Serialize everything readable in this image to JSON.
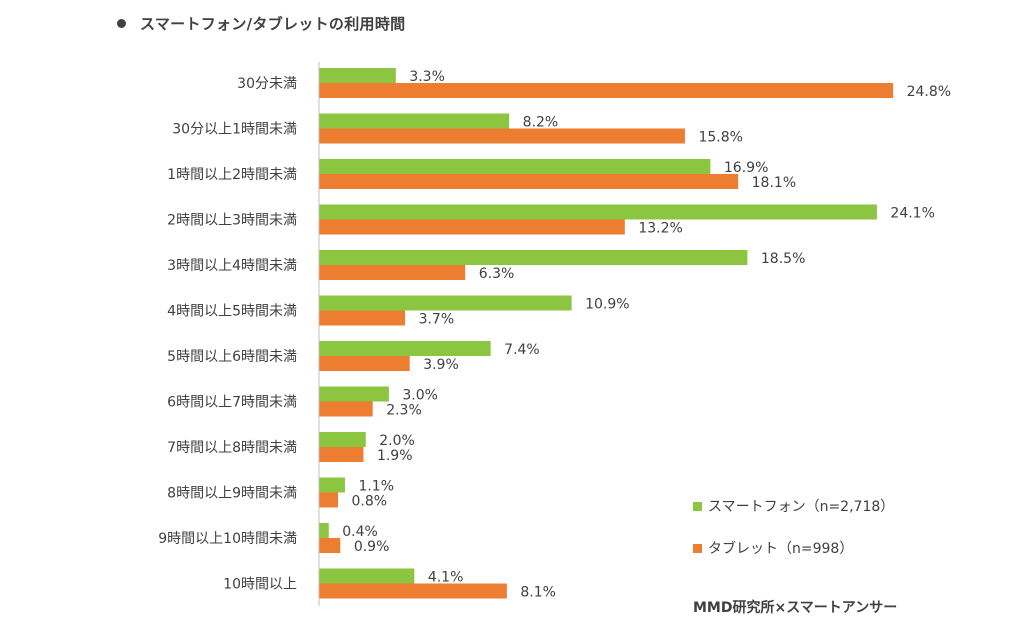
{
  "header": {
    "title": "スマートフォン/タブレットの利用時間"
  },
  "chart_data": {
    "type": "bar",
    "orientation": "horizontal",
    "title": "スマートフォン/タブレットの利用時間",
    "categories": [
      "30分未満",
      "30分以上1時間未満",
      "1時間以上2時間未満",
      "2時間以上3時間未満",
      "3時間以上4時間未満",
      "4時間以上5時間未満",
      "5時間以上6時間未満",
      "6時間以上7時間未満",
      "7時間以上8時間未満",
      "8時間以上9時間未満",
      "9時間以上10時間未満",
      "10時間以上"
    ],
    "series": [
      {
        "name": "スマートフォン（n=2,718）",
        "color": "#8cc540",
        "values": [
          3.3,
          8.2,
          16.9,
          24.1,
          18.5,
          10.9,
          7.4,
          3.0,
          2.0,
          1.1,
          0.4,
          4.1
        ]
      },
      {
        "name": "タブレット（n=998）",
        "color": "#ed7d31",
        "values": [
          24.8,
          15.8,
          18.1,
          13.2,
          6.3,
          3.7,
          3.9,
          2.3,
          1.9,
          0.8,
          0.9,
          8.1
        ]
      }
    ],
    "value_suffix": "%",
    "xlim": [
      0,
      25
    ],
    "legend_position": "bottom-right",
    "grid": false
  },
  "source": "MMD研究所×スマートアンサー"
}
